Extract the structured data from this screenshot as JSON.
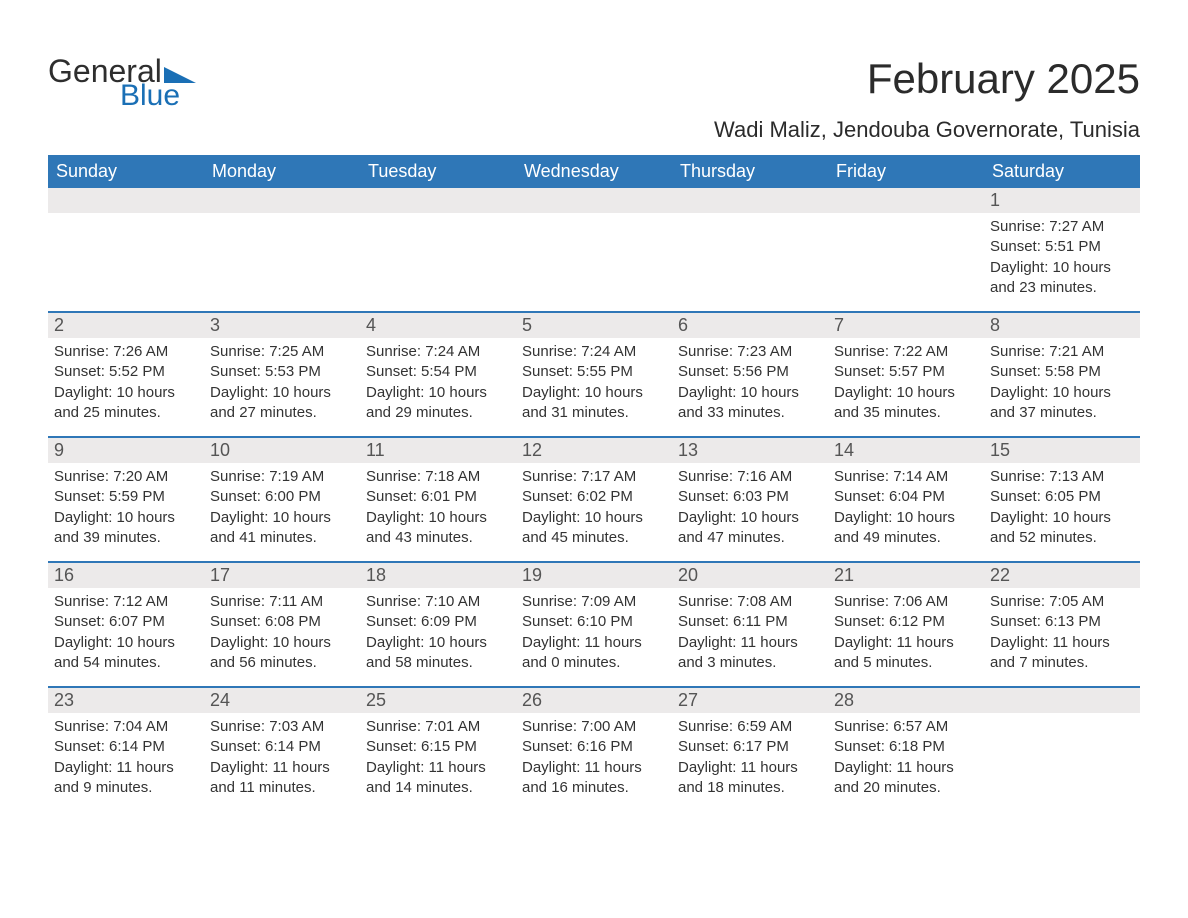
{
  "brand": {
    "word1": "General",
    "word2": "Blue",
    "text_color": "#2e2e2e",
    "accent_color": "#1a6fb5"
  },
  "title": "February 2025",
  "location": "Wadi Maliz, Jendouba Governorate, Tunisia",
  "colors": {
    "header_bg": "#2f77b7",
    "header_text": "#ffffff",
    "daynum_bg": "#eceaea",
    "daynum_text": "#555555",
    "body_text": "#333333",
    "week_divider": "#2f77b7",
    "page_bg": "#ffffff"
  },
  "weekdays": [
    "Sunday",
    "Monday",
    "Tuesday",
    "Wednesday",
    "Thursday",
    "Friday",
    "Saturday"
  ],
  "weeks": [
    {
      "days": [
        null,
        null,
        null,
        null,
        null,
        null,
        {
          "n": "1",
          "sunrise": "Sunrise: 7:27 AM",
          "sunset": "Sunset: 5:51 PM",
          "daylight1": "Daylight: 10 hours",
          "daylight2": "and 23 minutes."
        }
      ]
    },
    {
      "days": [
        {
          "n": "2",
          "sunrise": "Sunrise: 7:26 AM",
          "sunset": "Sunset: 5:52 PM",
          "daylight1": "Daylight: 10 hours",
          "daylight2": "and 25 minutes."
        },
        {
          "n": "3",
          "sunrise": "Sunrise: 7:25 AM",
          "sunset": "Sunset: 5:53 PM",
          "daylight1": "Daylight: 10 hours",
          "daylight2": "and 27 minutes."
        },
        {
          "n": "4",
          "sunrise": "Sunrise: 7:24 AM",
          "sunset": "Sunset: 5:54 PM",
          "daylight1": "Daylight: 10 hours",
          "daylight2": "and 29 minutes."
        },
        {
          "n": "5",
          "sunrise": "Sunrise: 7:24 AM",
          "sunset": "Sunset: 5:55 PM",
          "daylight1": "Daylight: 10 hours",
          "daylight2": "and 31 minutes."
        },
        {
          "n": "6",
          "sunrise": "Sunrise: 7:23 AM",
          "sunset": "Sunset: 5:56 PM",
          "daylight1": "Daylight: 10 hours",
          "daylight2": "and 33 minutes."
        },
        {
          "n": "7",
          "sunrise": "Sunrise: 7:22 AM",
          "sunset": "Sunset: 5:57 PM",
          "daylight1": "Daylight: 10 hours",
          "daylight2": "and 35 minutes."
        },
        {
          "n": "8",
          "sunrise": "Sunrise: 7:21 AM",
          "sunset": "Sunset: 5:58 PM",
          "daylight1": "Daylight: 10 hours",
          "daylight2": "and 37 minutes."
        }
      ]
    },
    {
      "days": [
        {
          "n": "9",
          "sunrise": "Sunrise: 7:20 AM",
          "sunset": "Sunset: 5:59 PM",
          "daylight1": "Daylight: 10 hours",
          "daylight2": "and 39 minutes."
        },
        {
          "n": "10",
          "sunrise": "Sunrise: 7:19 AM",
          "sunset": "Sunset: 6:00 PM",
          "daylight1": "Daylight: 10 hours",
          "daylight2": "and 41 minutes."
        },
        {
          "n": "11",
          "sunrise": "Sunrise: 7:18 AM",
          "sunset": "Sunset: 6:01 PM",
          "daylight1": "Daylight: 10 hours",
          "daylight2": "and 43 minutes."
        },
        {
          "n": "12",
          "sunrise": "Sunrise: 7:17 AM",
          "sunset": "Sunset: 6:02 PM",
          "daylight1": "Daylight: 10 hours",
          "daylight2": "and 45 minutes."
        },
        {
          "n": "13",
          "sunrise": "Sunrise: 7:16 AM",
          "sunset": "Sunset: 6:03 PM",
          "daylight1": "Daylight: 10 hours",
          "daylight2": "and 47 minutes."
        },
        {
          "n": "14",
          "sunrise": "Sunrise: 7:14 AM",
          "sunset": "Sunset: 6:04 PM",
          "daylight1": "Daylight: 10 hours",
          "daylight2": "and 49 minutes."
        },
        {
          "n": "15",
          "sunrise": "Sunrise: 7:13 AM",
          "sunset": "Sunset: 6:05 PM",
          "daylight1": "Daylight: 10 hours",
          "daylight2": "and 52 minutes."
        }
      ]
    },
    {
      "days": [
        {
          "n": "16",
          "sunrise": "Sunrise: 7:12 AM",
          "sunset": "Sunset: 6:07 PM",
          "daylight1": "Daylight: 10 hours",
          "daylight2": "and 54 minutes."
        },
        {
          "n": "17",
          "sunrise": "Sunrise: 7:11 AM",
          "sunset": "Sunset: 6:08 PM",
          "daylight1": "Daylight: 10 hours",
          "daylight2": "and 56 minutes."
        },
        {
          "n": "18",
          "sunrise": "Sunrise: 7:10 AM",
          "sunset": "Sunset: 6:09 PM",
          "daylight1": "Daylight: 10 hours",
          "daylight2": "and 58 minutes."
        },
        {
          "n": "19",
          "sunrise": "Sunrise: 7:09 AM",
          "sunset": "Sunset: 6:10 PM",
          "daylight1": "Daylight: 11 hours",
          "daylight2": "and 0 minutes."
        },
        {
          "n": "20",
          "sunrise": "Sunrise: 7:08 AM",
          "sunset": "Sunset: 6:11 PM",
          "daylight1": "Daylight: 11 hours",
          "daylight2": "and 3 minutes."
        },
        {
          "n": "21",
          "sunrise": "Sunrise: 7:06 AM",
          "sunset": "Sunset: 6:12 PM",
          "daylight1": "Daylight: 11 hours",
          "daylight2": "and 5 minutes."
        },
        {
          "n": "22",
          "sunrise": "Sunrise: 7:05 AM",
          "sunset": "Sunset: 6:13 PM",
          "daylight1": "Daylight: 11 hours",
          "daylight2": "and 7 minutes."
        }
      ]
    },
    {
      "days": [
        {
          "n": "23",
          "sunrise": "Sunrise: 7:04 AM",
          "sunset": "Sunset: 6:14 PM",
          "daylight1": "Daylight: 11 hours",
          "daylight2": "and 9 minutes."
        },
        {
          "n": "24",
          "sunrise": "Sunrise: 7:03 AM",
          "sunset": "Sunset: 6:14 PM",
          "daylight1": "Daylight: 11 hours",
          "daylight2": "and 11 minutes."
        },
        {
          "n": "25",
          "sunrise": "Sunrise: 7:01 AM",
          "sunset": "Sunset: 6:15 PM",
          "daylight1": "Daylight: 11 hours",
          "daylight2": "and 14 minutes."
        },
        {
          "n": "26",
          "sunrise": "Sunrise: 7:00 AM",
          "sunset": "Sunset: 6:16 PM",
          "daylight1": "Daylight: 11 hours",
          "daylight2": "and 16 minutes."
        },
        {
          "n": "27",
          "sunrise": "Sunrise: 6:59 AM",
          "sunset": "Sunset: 6:17 PM",
          "daylight1": "Daylight: 11 hours",
          "daylight2": "and 18 minutes."
        },
        {
          "n": "28",
          "sunrise": "Sunrise: 6:57 AM",
          "sunset": "Sunset: 6:18 PM",
          "daylight1": "Daylight: 11 hours",
          "daylight2": "and 20 minutes."
        },
        null
      ]
    }
  ]
}
